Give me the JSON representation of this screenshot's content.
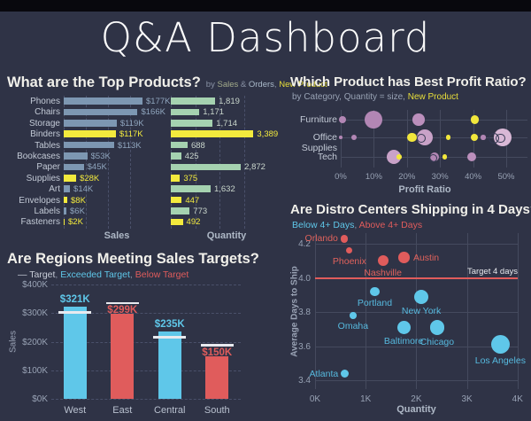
{
  "title": "Q&A Dashboard",
  "colors": {
    "background": "#2f3346",
    "top_strip": "#08080d",
    "title_text": "#fbfbfb",
    "grid": "#4a506a",
    "highlight_yellow": "#f3ea3d",
    "sales_bar": "#7d97b2",
    "quantity_bar": "#a5d2b0",
    "exceeded_blue": "#5fc7e9",
    "below_red": "#e05c5c",
    "purple": "#b286b4",
    "pink": "#d9b8d6"
  },
  "chart_data": [
    {
      "type": "bar",
      "title": "What are the Top Products?",
      "subtitle_parts": [
        {
          "text": "by ",
          "color": "#8a93a6"
        },
        {
          "text": "Sales",
          "color": "#a3ab8b"
        },
        {
          "text": " & ",
          "color": "#8a93a6"
        },
        {
          "text": "Orders",
          "color": "#a9b9c9"
        },
        {
          "text": ", ",
          "color": "#8a93a6"
        },
        {
          "text": "New Product",
          "color": "#e9df3a"
        }
      ],
      "categories": [
        "Phones",
        "Chairs",
        "Storage",
        "Binders",
        "Tables",
        "Bookcases",
        "Paper",
        "Supplies",
        "Art",
        "Envelopes",
        "Labels",
        "Fasteners"
      ],
      "highlighted": [
        "Binders",
        "Supplies",
        "Envelopes",
        "Fasteners"
      ],
      "highlight_color": "#f3ea3d",
      "series": [
        {
          "name": "Sales",
          "axis_label": "Sales",
          "max": 177,
          "gridlines": [
            0,
            50,
            100,
            150
          ],
          "values": [
            177,
            166,
            119,
            117,
            113,
            53,
            45,
            28,
            14,
            8,
            6,
            2
          ],
          "labels": [
            "$177K",
            "$166K",
            "$119K",
            "$117K",
            "$113K",
            "$53K",
            "$45K",
            "$28K",
            "$14K",
            "$8K",
            "$6K",
            "$2K"
          ],
          "bar_color": "#7d97b2",
          "label_color": "#8fa5bd"
        },
        {
          "name": "Quantity",
          "axis_label": "Quantity",
          "max": 3389,
          "gridlines": [
            0,
            1000,
            2000,
            3000
          ],
          "values": [
            1819,
            1171,
            1714,
            3389,
            688,
            425,
            2872,
            375,
            1632,
            447,
            773,
            492
          ],
          "labels": [
            "1,819",
            "1,171",
            "1,714",
            "3,389",
            "688",
            "425",
            "2,872",
            "375",
            "1,632",
            "447",
            "773",
            "492"
          ],
          "bar_color": "#a5d2b0",
          "label_color": "#c9d6cc"
        }
      ]
    },
    {
      "type": "scatter",
      "title": "Which Product has Best Profit Ratio?",
      "subtitle_parts": [
        {
          "text": "by Category, Quantity = size, ",
          "color": "#98a2b4"
        },
        {
          "text": "New Product",
          "color": "#e9df3a"
        }
      ],
      "categories": [
        "Furniture",
        "Office Supplies",
        "Tech"
      ],
      "xlabel": "Profit Ratio",
      "x_ticks": [
        {
          "label": "0%",
          "value": 0
        },
        {
          "label": "10%",
          "value": 10
        },
        {
          "label": "20%",
          "value": 20
        },
        {
          "label": "30%",
          "value": 30
        },
        {
          "label": "40%",
          "value": 40
        },
        {
          "label": "50%",
          "value": 50
        }
      ],
      "points": [
        {
          "category": "Furniture",
          "x": 0.5,
          "r": 4.3,
          "color": "#b286b4"
        },
        {
          "category": "Furniture",
          "x": 10,
          "r": 10,
          "color": "#b286b4"
        },
        {
          "category": "Furniture",
          "x": 23.5,
          "r": 6.7,
          "color": "#bb8fbc"
        },
        {
          "category": "Furniture",
          "x": 40.5,
          "r": 4.7,
          "color": "#f2e73c"
        },
        {
          "category": "Office Supplies",
          "x": 0,
          "r": 1.8,
          "color": "#b286b4"
        },
        {
          "category": "Office Supplies",
          "x": 4,
          "r": 3.4,
          "color": "#b286b4"
        },
        {
          "category": "Office Supplies",
          "x": 25.5,
          "r": 9,
          "color": "#c9a2c8"
        },
        {
          "category": "Office Supplies",
          "x": 21.5,
          "r": 5.4,
          "color": "#f2e73c"
        },
        {
          "category": "Office Supplies",
          "x": 24,
          "r": 4,
          "color": "#c9a2c8",
          "ring": true
        },
        {
          "category": "Office Supplies",
          "x": 32.5,
          "r": 2.7,
          "color": "#f2e73c"
        },
        {
          "category": "Office Supplies",
          "x": 40.5,
          "r": 4,
          "color": "#f2e73c"
        },
        {
          "category": "Office Supplies",
          "x": 43,
          "r": 2.7,
          "color": "#b286b4"
        },
        {
          "category": "Office Supplies",
          "x": 49,
          "r": 10,
          "color": "#d9b8d6"
        },
        {
          "category": "Office Supplies",
          "x": 46,
          "r": 5.3,
          "ring": true
        },
        {
          "category": "Office Supplies",
          "x": 48,
          "r": 4.3,
          "ring": true
        },
        {
          "category": "Tech",
          "x": 16,
          "r": 8.3,
          "color": "#c9a2c8"
        },
        {
          "category": "Tech",
          "x": 17.7,
          "r": 2.8,
          "color": "#f2e73c"
        },
        {
          "category": "Tech",
          "x": 28.3,
          "r": 5,
          "color": "#b286b4"
        },
        {
          "category": "Tech",
          "x": 27.8,
          "r": 3.5,
          "ring": true
        },
        {
          "category": "Tech",
          "x": 31.4,
          "r": 2.8,
          "color": "#f2e73c"
        },
        {
          "category": "Tech",
          "x": 39.7,
          "r": 5,
          "color": "#bb8fbc"
        }
      ]
    },
    {
      "type": "bar",
      "title": "Are Regions Meeting Sales Targets?",
      "subtitle_parts": [
        {
          "text": "— Target",
          "color": "#c8cdd8"
        },
        {
          "text": ", ",
          "color": "#8a93a6"
        },
        {
          "text": "Exceeded Target",
          "color": "#5fc7e9"
        },
        {
          "text": ", ",
          "color": "#8a93a6"
        },
        {
          "text": "Below Target",
          "color": "#e05c5c"
        }
      ],
      "ylabel": "Sales",
      "y_max": 400,
      "y_ticks": [
        {
          "label": "$0K",
          "value": 0
        },
        {
          "label": "$100K",
          "value": 100
        },
        {
          "label": "$200K",
          "value": 200
        },
        {
          "label": "$300K",
          "value": 300
        },
        {
          "label": "$400K",
          "value": 400
        }
      ],
      "categories": [
        "West",
        "East",
        "Central",
        "South"
      ],
      "values": [
        321,
        299,
        235,
        150
      ],
      "value_labels": [
        "$321K",
        "$299K",
        "$235K",
        "$150K"
      ],
      "targets": [
        303,
        336,
        216,
        188
      ],
      "status": [
        "exceeded",
        "below",
        "exceeded",
        "below"
      ],
      "exceeded_color": "#5fc7e9",
      "below_color": "#e05c5c"
    },
    {
      "type": "scatter",
      "title": "Are Distro Centers Shipping in 4 Days?",
      "subtitle_parts": [
        {
          "text": "Below 4+ Days",
          "color": "#5fc7e9"
        },
        {
          "text": ", ",
          "color": "#8a93a6"
        },
        {
          "text": "Above 4+ Days",
          "color": "#e05c5c"
        }
      ],
      "xlabel": "Quantity",
      "ylabel": "Average Days to Ship",
      "x_ticks": [
        {
          "label": "0K",
          "value": 0
        },
        {
          "label": "1K",
          "value": 1
        },
        {
          "label": "2K",
          "value": 2
        },
        {
          "label": "3K",
          "value": 3
        },
        {
          "label": "4K",
          "value": 4
        }
      ],
      "y_ticks": [
        {
          "label": "3.4",
          "value": 3.4
        },
        {
          "label": "3.6",
          "value": 3.6
        },
        {
          "label": "3.8",
          "value": 3.8
        },
        {
          "label": "4.0",
          "value": 4.0
        },
        {
          "label": "4.2",
          "value": 4.2
        }
      ],
      "target_line": {
        "value": 4.0,
        "label": "Target 4 days",
        "color": "#e05c5c",
        "label_color": "#e7e9ee"
      },
      "below_color": "#5fc7e9",
      "above_color": "#e05c5c",
      "points": [
        {
          "city": "Orlando",
          "x": 0.58,
          "y": 4.23,
          "r": 4.3,
          "status": "above",
          "label_pos": "left"
        },
        {
          "city": "Phoenix",
          "x": 0.68,
          "y": 4.16,
          "r": 3.6,
          "status": "above",
          "label_pos": "below"
        },
        {
          "city": "Nashville",
          "x": 1.34,
          "y": 4.1,
          "r": 6,
          "status": "above",
          "label_pos": "below"
        },
        {
          "city": "Austin",
          "x": 1.76,
          "y": 4.12,
          "r": 6.3,
          "status": "above",
          "label_pos": "right"
        },
        {
          "city": "Portland",
          "x": 1.18,
          "y": 3.92,
          "r": 5.3,
          "status": "below",
          "label_pos": "below"
        },
        {
          "city": "New York",
          "x": 2.1,
          "y": 3.89,
          "r": 8,
          "status": "below",
          "label_pos": "below"
        },
        {
          "city": "Omaha",
          "x": 0.75,
          "y": 3.78,
          "r": 3.8,
          "status": "below",
          "label_pos": "below"
        },
        {
          "city": "Baltimore",
          "x": 1.75,
          "y": 3.71,
          "r": 7.5,
          "status": "below",
          "label_pos": "below"
        },
        {
          "city": "Chicago",
          "x": 2.41,
          "y": 3.71,
          "r": 8.3,
          "status": "below",
          "label_pos": "below"
        },
        {
          "city": "Los Angeles",
          "x": 3.66,
          "y": 3.61,
          "r": 10.7,
          "status": "below",
          "label_pos": "below"
        },
        {
          "city": "Atlanta",
          "x": 0.59,
          "y": 3.44,
          "r": 4.5,
          "status": "below",
          "label_pos": "left"
        }
      ]
    }
  ]
}
